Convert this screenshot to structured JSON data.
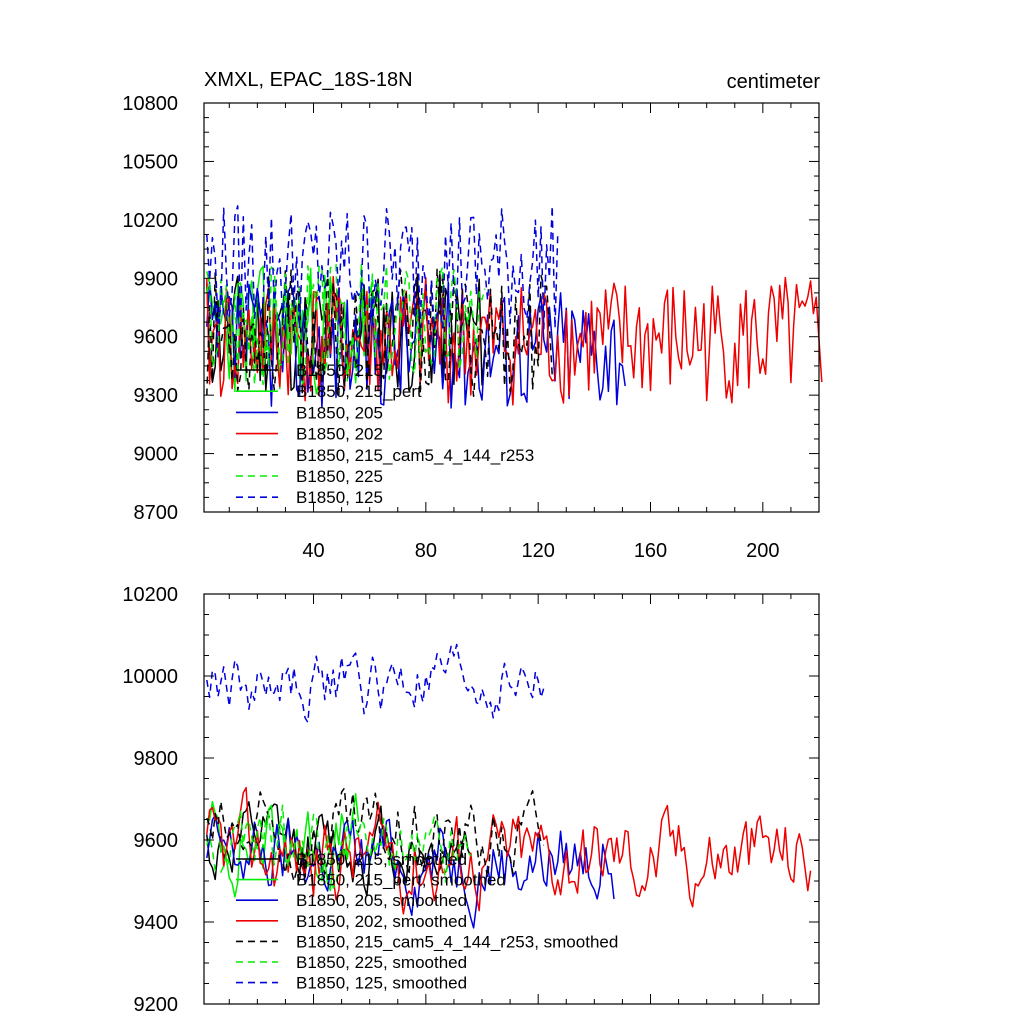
{
  "chart_data": [
    {
      "type": "line",
      "title": "XMXL, EPAC_18S-18N",
      "units": "centimeter",
      "xlim": [
        1,
        220
      ],
      "ylim": [
        8700,
        10800
      ],
      "xticks": [
        40,
        80,
        120,
        160,
        200
      ],
      "yticks": [
        8700,
        9000,
        9300,
        9600,
        9900,
        10200,
        10500,
        10800
      ],
      "xtick_labels": [
        "40",
        "80",
        "120",
        "160",
        "200"
      ],
      "ytick_labels": [
        "8700",
        "9000",
        "9300",
        "9600",
        "9900",
        "10200",
        "10500",
        "10800"
      ],
      "series": [
        {
          "name": "B1850, 215",
          "color": "#000000",
          "dash": "solid",
          "n": 100,
          "mean": 9620,
          "amp": 320,
          "seed": 11
        },
        {
          "name": "B1850, 215_pert",
          "color": "#00ee00",
          "dash": "solid",
          "n": 60,
          "mean": 9640,
          "amp": 340,
          "seed": 23
        },
        {
          "name": "B1850, 205",
          "color": "#0000dd",
          "dash": "solid",
          "n": 150,
          "mean": 9560,
          "amp": 330,
          "seed": 37
        },
        {
          "name": "B1850, 202",
          "color": "#ee0000",
          "dash": "solid",
          "n": 220,
          "mean": 9580,
          "amp": 330,
          "seed": 41
        },
        {
          "name": "B1850, 215_cam5_4_144_r253",
          "color": "#000000",
          "dash": "dashed",
          "n": 125,
          "mean": 9620,
          "amp": 330,
          "seed": 53
        },
        {
          "name": "B1850, 225",
          "color": "#00ee00",
          "dash": "dashed",
          "n": 100,
          "mean": 9680,
          "amp": 330,
          "seed": 67
        },
        {
          "name": "B1850, 125",
          "color": "#0000dd",
          "dash": "dashed",
          "n": 126,
          "mean": 9960,
          "amp": 330,
          "seed": 79
        }
      ]
    },
    {
      "type": "line",
      "title": "",
      "units": "",
      "xlim": [
        1,
        220
      ],
      "ylim": [
        9200,
        10200
      ],
      "xticks": [
        40,
        80,
        120,
        160,
        200
      ],
      "yticks": [
        9200,
        9400,
        9600,
        9800,
        10000,
        10200
      ],
      "xtick_labels": [
        "",
        "",
        "",
        "",
        ""
      ],
      "ytick_labels": [
        "9200",
        "9400",
        "9600",
        "9800",
        "10000",
        "10200"
      ],
      "series": [
        {
          "name": "B1850, 215, smoothed",
          "color": "#000000",
          "dash": "solid",
          "n": 95,
          "mean": 9580,
          "amp": 90,
          "seed": 12
        },
        {
          "name": "B1850, 215_pert, smoothed",
          "color": "#00ee00",
          "dash": "solid",
          "n": 55,
          "mean": 9600,
          "amp": 100,
          "seed": 24
        },
        {
          "name": "B1850, 205, smoothed",
          "color": "#0000dd",
          "dash": "solid",
          "n": 146,
          "mean": 9560,
          "amp": 100,
          "seed": 38
        },
        {
          "name": "B1850, 202, smoothed",
          "color": "#ee0000",
          "dash": "solid",
          "n": 216,
          "mean": 9560,
          "amp": 110,
          "seed": 42
        },
        {
          "name": "B1850, 215_cam5_4_144_r253, smoothed",
          "color": "#000000",
          "dash": "dashed",
          "n": 121,
          "mean": 9600,
          "amp": 100,
          "seed": 54
        },
        {
          "name": "B1850, 225, smoothed",
          "color": "#00ee00",
          "dash": "dashed",
          "n": 95,
          "mean": 9580,
          "amp": 100,
          "seed": 68
        },
        {
          "name": "B1850, 125, smoothed",
          "color": "#0000dd",
          "dash": "dashed",
          "n": 121,
          "mean": 9980,
          "amp": 80,
          "seed": 80
        }
      ]
    }
  ]
}
